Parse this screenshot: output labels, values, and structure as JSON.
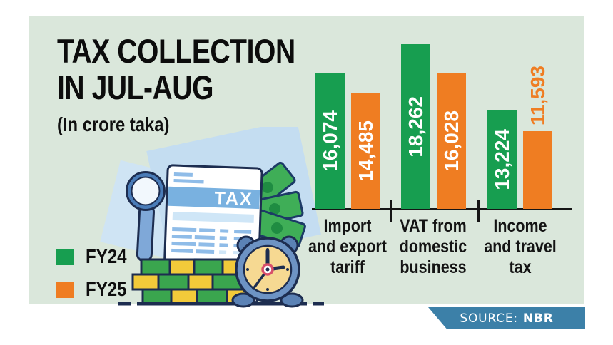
{
  "title": {
    "line1": "TAX COLLECTION",
    "line2": "IN JUL-AUG",
    "subtitle": "(In crore taka)"
  },
  "legend": [
    {
      "label": "FY24",
      "color": "#179e50"
    },
    {
      "label": "FY25",
      "color": "#ef7d22"
    }
  ],
  "source": {
    "prefix": "SOURCE:",
    "value": "NBR",
    "bg": "#3c80a8"
  },
  "colors": {
    "panel_bg": "#dae7db",
    "fy24_green": "#179e50",
    "fy25_orange": "#ef7d22",
    "axis_black": "#151515",
    "badge_blue": "#3c80a8",
    "outline_navy": "#1d2d50"
  },
  "illustration": {
    "document_label": "TAX",
    "icons": [
      "paper-sheets",
      "banknotes-icon",
      "tax-document-icon",
      "magnifying-glass-icon",
      "money-stack-icon",
      "ground-line",
      "alarm-clock-icon"
    ]
  },
  "chart_data": {
    "type": "bar",
    "title": "TAX COLLECTION IN JUL-AUG",
    "unit": "In crore taka",
    "categories": [
      "Import and export tariff",
      "VAT from domestic business",
      "Income and travel tax"
    ],
    "category_lines": [
      [
        "Import",
        "and export",
        "tariff"
      ],
      [
        "VAT from",
        "domestic",
        "business"
      ],
      [
        "Income",
        "and travel",
        "tax"
      ]
    ],
    "series": [
      {
        "name": "FY24",
        "color": "#179e50",
        "values": [
          16074,
          18262,
          13224
        ],
        "labels": [
          "16,074",
          "18,262",
          "13,224"
        ],
        "label_outside": [
          false,
          false,
          false
        ]
      },
      {
        "name": "FY25",
        "color": "#ef7d22",
        "values": [
          14485,
          16028,
          11593
        ],
        "labels": [
          "14,485",
          "16,028",
          "11,593"
        ],
        "label_outside": [
          false,
          false,
          true
        ]
      }
    ],
    "ylim": [
      5600,
      18262
    ],
    "grid": false,
    "legend_position": "bottom-left",
    "value_label_style": "rotated-90-inside-bar-white, outside-orange-when-bar-too-short"
  }
}
